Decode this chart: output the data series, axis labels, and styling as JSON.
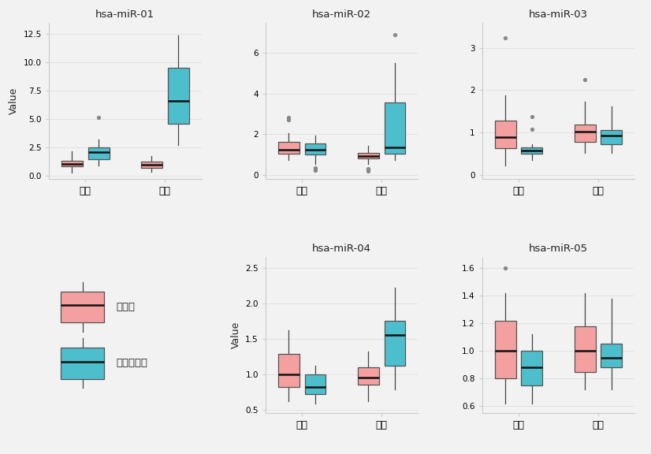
{
  "titles": [
    "hsa-miR-01",
    "hsa-miR-02",
    "hsa-miR-03",
    "hsa-miR-04",
    "hsa-miR-05"
  ],
  "groups": [
    "여성",
    "남성"
  ],
  "ylabel": "Value",
  "color_control": "#F4A0A0",
  "color_sleep": "#4DBECC",
  "legend_labels": [
    "대조군",
    "수면장애군"
  ],
  "ylims": {
    "hsa-miR-01": [
      -0.3,
      13.5
    ],
    "hsa-miR-02": [
      -0.2,
      7.5
    ],
    "hsa-miR-03": [
      -0.1,
      3.6
    ],
    "hsa-miR-04": [
      0.45,
      2.65
    ],
    "hsa-miR-05": [
      0.55,
      1.68
    ]
  },
  "yticks": {
    "hsa-miR-01": [
      0,
      2.5,
      5.0,
      7.5,
      10.0,
      12.5
    ],
    "hsa-miR-02": [
      0,
      2,
      4,
      6
    ],
    "hsa-miR-03": [
      0,
      1,
      2,
      3
    ],
    "hsa-miR-04": [
      0.5,
      1.0,
      1.5,
      2.0,
      2.5
    ],
    "hsa-miR-05": [
      0.6,
      0.8,
      1.0,
      1.2,
      1.4,
      1.6
    ]
  },
  "boxes": {
    "hsa-miR-01": {
      "여성": {
        "control": {
          "q1": 0.78,
          "median": 1.0,
          "q3": 1.32,
          "whislo": 0.28,
          "whishi": 2.15,
          "fliers": []
        },
        "sleep": {
          "q1": 1.42,
          "median": 2.05,
          "q3": 2.5,
          "whislo": 0.85,
          "whishi": 3.2,
          "fliers": [
            5.1
          ]
        }
      },
      "남성": {
        "control": {
          "q1": 0.7,
          "median": 0.92,
          "q3": 1.22,
          "whislo": 0.32,
          "whishi": 1.72,
          "fliers": []
        },
        "sleep": {
          "q1": 4.6,
          "median": 6.6,
          "q3": 9.5,
          "whislo": 2.7,
          "whishi": 12.4,
          "fliers": []
        }
      }
    },
    "hsa-miR-02": {
      "여성": {
        "control": {
          "q1": 1.05,
          "median": 1.25,
          "q3": 1.62,
          "whislo": 0.72,
          "whishi": 2.05,
          "fliers": [
            2.72,
            2.82
          ]
        },
        "sleep": {
          "q1": 1.02,
          "median": 1.22,
          "q3": 1.55,
          "whislo": 0.52,
          "whishi": 1.95,
          "fliers": [
            0.22,
            0.28,
            0.33
          ]
        }
      },
      "남성": {
        "control": {
          "q1": 0.82,
          "median": 0.92,
          "q3": 1.08,
          "whislo": 0.52,
          "whishi": 1.42,
          "fliers": [
            0.2,
            0.25,
            0.3
          ]
        },
        "sleep": {
          "q1": 1.05,
          "median": 1.35,
          "q3": 3.55,
          "whislo": 0.72,
          "whishi": 5.5,
          "fliers": [
            6.9
          ]
        }
      }
    },
    "hsa-miR-03": {
      "여성": {
        "control": {
          "q1": 0.62,
          "median": 0.88,
          "q3": 1.28,
          "whislo": 0.22,
          "whishi": 1.88,
          "fliers": [
            3.25
          ]
        },
        "sleep": {
          "q1": 0.5,
          "median": 0.58,
          "q3": 0.65,
          "whislo": 0.35,
          "whishi": 0.72,
          "fliers": [
            1.08,
            1.38
          ]
        }
      },
      "남성": {
        "control": {
          "q1": 0.78,
          "median": 1.02,
          "q3": 1.18,
          "whislo": 0.52,
          "whishi": 1.72,
          "fliers": [
            2.25
          ]
        },
        "sleep": {
          "q1": 0.72,
          "median": 0.92,
          "q3": 1.05,
          "whislo": 0.52,
          "whishi": 1.62,
          "fliers": []
        }
      }
    },
    "hsa-miR-04": {
      "여성": {
        "control": {
          "q1": 0.82,
          "median": 1.0,
          "q3": 1.28,
          "whislo": 0.62,
          "whishi": 1.62,
          "fliers": []
        },
        "sleep": {
          "q1": 0.72,
          "median": 0.82,
          "q3": 1.0,
          "whislo": 0.58,
          "whishi": 1.12,
          "fliers": []
        }
      },
      "남성": {
        "control": {
          "q1": 0.85,
          "median": 0.95,
          "q3": 1.1,
          "whislo": 0.62,
          "whishi": 1.32,
          "fliers": []
        },
        "sleep": {
          "q1": 1.12,
          "median": 1.55,
          "q3": 1.75,
          "whislo": 0.78,
          "whishi": 2.22,
          "fliers": []
        }
      }
    },
    "hsa-miR-05": {
      "여성": {
        "control": {
          "q1": 0.8,
          "median": 1.0,
          "q3": 1.22,
          "whislo": 0.62,
          "whishi": 1.42,
          "fliers": [
            1.6
          ]
        },
        "sleep": {
          "q1": 0.75,
          "median": 0.88,
          "q3": 1.0,
          "whislo": 0.62,
          "whishi": 1.12,
          "fliers": []
        }
      },
      "남성": {
        "control": {
          "q1": 0.85,
          "median": 1.0,
          "q3": 1.18,
          "whislo": 0.72,
          "whishi": 1.42,
          "fliers": []
        },
        "sleep": {
          "q1": 0.88,
          "median": 0.95,
          "q3": 1.05,
          "whislo": 0.72,
          "whishi": 1.38,
          "fliers": []
        }
      }
    }
  },
  "background_color": "#f2f2f2",
  "grid_color": "#e0e0e0",
  "spine_color": "#cccccc",
  "flier_color": "#888888",
  "median_color": "#111111",
  "whisker_color": "#444444",
  "box_edge_color": "#555555"
}
